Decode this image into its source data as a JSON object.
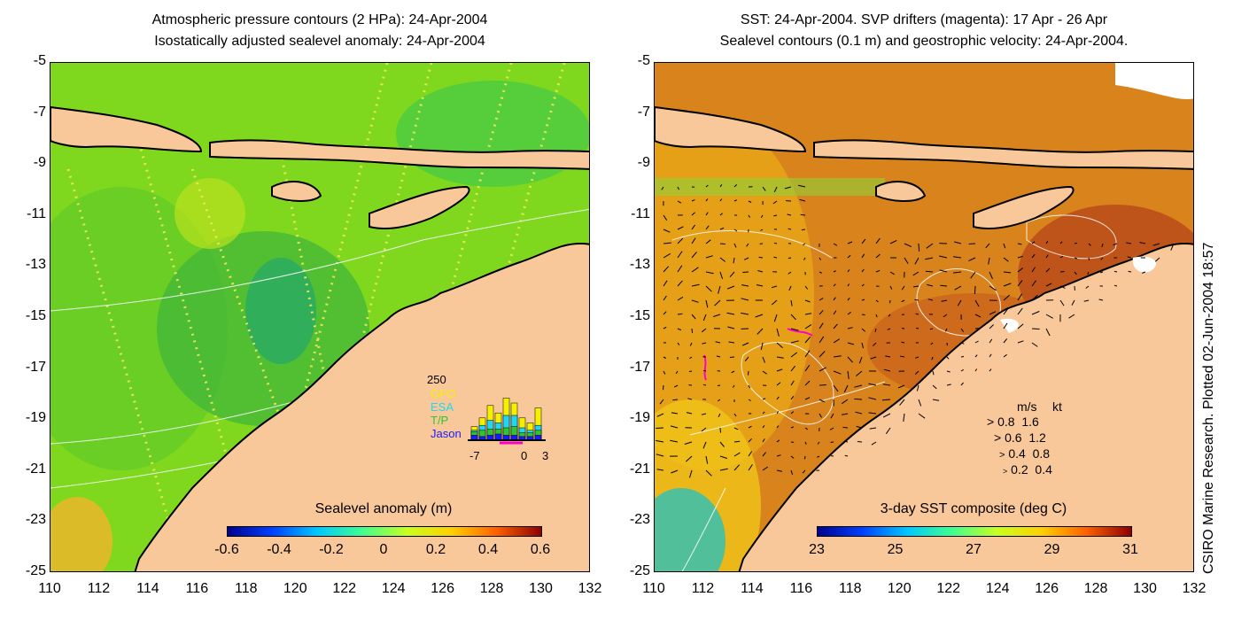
{
  "left_panel": {
    "title_line1": "Atmospheric pressure contours (2 HPa): 24-Apr-2004",
    "title_line2": "Isostatically adjusted sealevel anomaly: 24-Apr-2004",
    "colorbar": {
      "label": "Sealevel anomaly (m)",
      "ticks": [
        "-0.6",
        "-0.4",
        "-0.2",
        "0",
        "0.2",
        "0.4",
        "0.6"
      ],
      "range": [
        -0.6,
        0.6
      ]
    },
    "inset_histogram": {
      "ymax_label": "250",
      "legend": [
        {
          "name": "GFO",
          "color": "#f4f000"
        },
        {
          "name": "ESA",
          "color": "#22d6ee"
        },
        {
          "name": "T/P",
          "color": "#2ec52e"
        },
        {
          "name": "Jason",
          "color": "#1a1aff"
        }
      ],
      "xticks": [
        "-7",
        "0",
        "3"
      ],
      "bars": [
        {
          "jason": 20,
          "tp": 35,
          "esa": 40,
          "gfo": 55
        },
        {
          "jason": 15,
          "tp": 40,
          "esa": 60,
          "gfo": 90
        },
        {
          "jason": 20,
          "tp": 45,
          "esa": 80,
          "gfo": 140
        },
        {
          "jason": 25,
          "tp": 45,
          "esa": 70,
          "gfo": 110
        },
        {
          "jason": 20,
          "tp": 50,
          "esa": 100,
          "gfo": 170
        },
        {
          "jason": 20,
          "tp": 55,
          "esa": 100,
          "gfo": 150
        },
        {
          "jason": 15,
          "tp": 30,
          "esa": 50,
          "gfo": 90
        },
        {
          "jason": 15,
          "tp": 30,
          "esa": 40,
          "gfo": 70
        },
        {
          "jason": 20,
          "tp": 40,
          "esa": 60,
          "gfo": 130
        }
      ]
    }
  },
  "right_panel": {
    "title_line1": "SST: 24-Apr-2004. SVP drifters (magenta): 17 Apr - 26 Apr",
    "title_line2": "Sealevel contours (0.1 m) and geostrophic velocity: 24-Apr-2004.",
    "colorbar": {
      "label": "3-day SST composite (deg C)",
      "ticks": [
        "23",
        "25",
        "27",
        "29",
        "31"
      ],
      "range": [
        23,
        31
      ]
    },
    "velocity_legend": {
      "header_ms": "m/s",
      "header_kt": "kt",
      "rows": [
        {
          "ms": "0.8",
          "kt": "1.6"
        },
        {
          "ms": "0.6",
          "kt": "1.2"
        },
        {
          "ms": "0.4",
          "kt": "0.8"
        },
        {
          "ms": "0.2",
          "kt": "0.4"
        }
      ]
    }
  },
  "axes": {
    "lat_ticks": [
      "-5",
      "-7",
      "-9",
      "-11",
      "-13",
      "-15",
      "-17",
      "-19",
      "-21",
      "-23",
      "-25"
    ],
    "lon_ticks": [
      "110",
      "112",
      "114",
      "116",
      "118",
      "120",
      "122",
      "124",
      "126",
      "128",
      "130",
      "132"
    ],
    "lat_range": [
      -25,
      -5
    ],
    "lon_range": [
      110,
      132
    ]
  },
  "credit": "CSIRO Marine Research. Plotted 02-Jun-2004 18:57",
  "colors": {
    "land": "#f9c89a",
    "sea_left": "#7fd81e",
    "sea_right": "#d9831c",
    "coast": "#000000",
    "drifter": "#ff00cc"
  }
}
